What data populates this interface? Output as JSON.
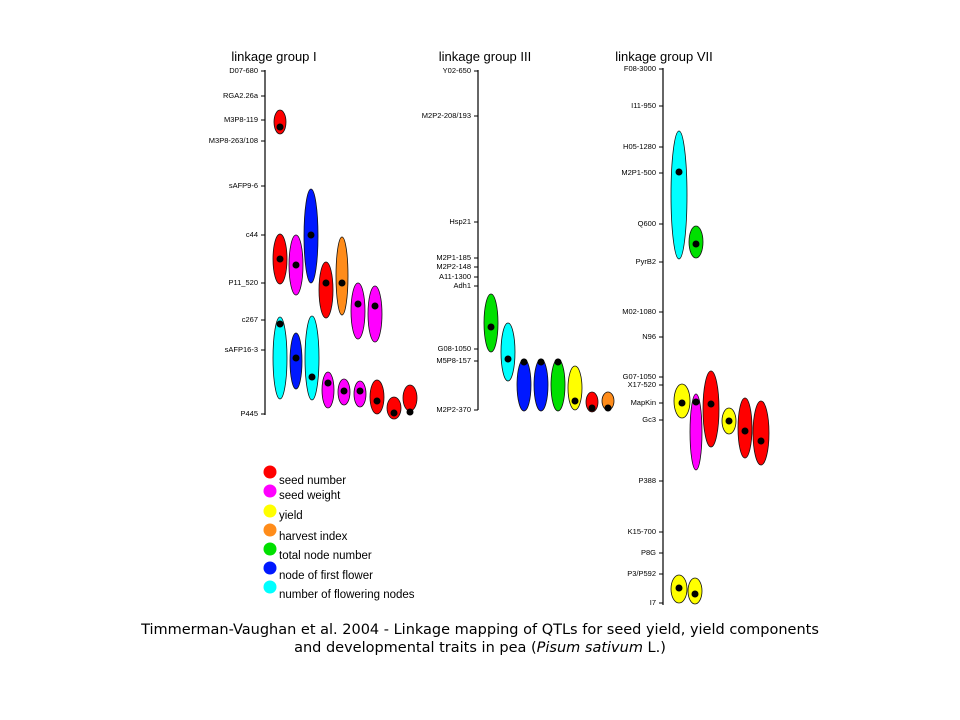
{
  "colors": {
    "seed_number": "#ff0000",
    "seed_weight": "#ff00ff",
    "yield": "#ffff00",
    "harvest_index": "#ff8c1a",
    "total_node_number": "#00e000",
    "node_of_first_flower": "#0018ff",
    "number_of_flowering_nodes": "#00ffff",
    "line": "#000000"
  },
  "groups": [
    {
      "title": "linkage group I",
      "markers": [
        "D07-680",
        "RGA2.26a",
        "M3P8-119",
        "M3P8-263/108",
        "sAFP9-6",
        "c44",
        "P11_520",
        "c267",
        "sAFP16-3",
        "P445"
      ]
    },
    {
      "title": "linkage group III",
      "markers": [
        "Y02-650",
        "M2P2-208/193",
        "Hsp21",
        "M2P1-185",
        "M2P2-148",
        "A11-1300",
        "Adh1",
        "G08-1050",
        "M5P8-157",
        "M2P2-370"
      ]
    },
    {
      "title": "linkage group VII",
      "markers": [
        "F08-3000",
        "I11-950",
        "H05-1280",
        "M2P1-500",
        "Q600",
        "PyrB2",
        "M02-1080",
        "N96",
        "G07-1050",
        "X17-520",
        "MapKin",
        "Gc3",
        "P388",
        "K15-700",
        "P8G",
        "P3/P592",
        "I7"
      ]
    }
  ],
  "legend": [
    {
      "label": "seed number",
      "color_key": "seed_number"
    },
    {
      "label": "seed weight",
      "color_key": "seed_weight"
    },
    {
      "label": "yield",
      "color_key": "yield"
    },
    {
      "label": "harvest index",
      "color_key": "harvest_index"
    },
    {
      "label": "total node number",
      "color_key": "total_node_number"
    },
    {
      "label": "node of first flower",
      "color_key": "node_of_first_flower"
    },
    {
      "label": "number of flowering nodes",
      "color_key": "number_of_flowering_nodes"
    }
  ],
  "caption": {
    "line1": "Timmerman-Vaughan et al. 2004 - Linkage mapping of QTLs for seed yield, yield components",
    "line2_prefix": "and developmental traits in pea (",
    "line2_italic": "Pisum sativum",
    "line2_suffix": " L.)"
  }
}
